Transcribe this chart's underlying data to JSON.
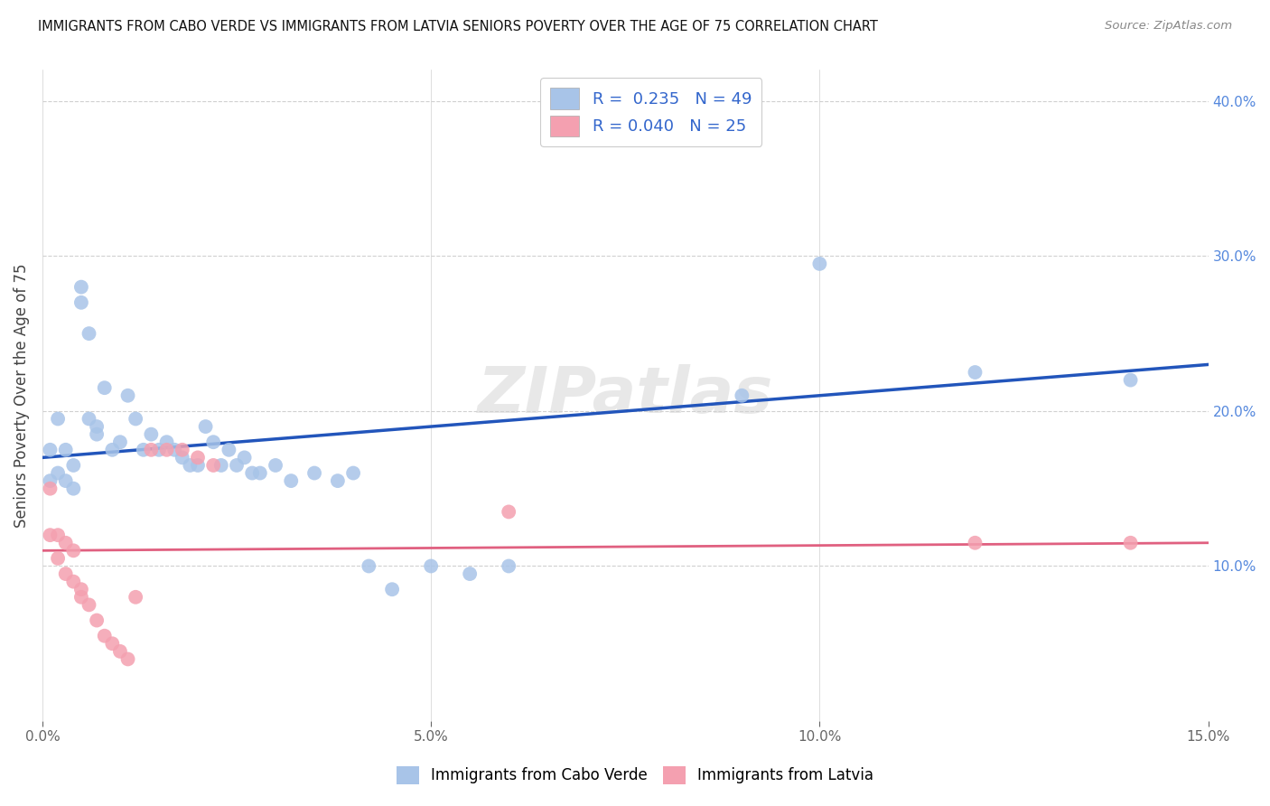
{
  "title": "IMMIGRANTS FROM CABO VERDE VS IMMIGRANTS FROM LATVIA SENIORS POVERTY OVER THE AGE OF 75 CORRELATION CHART",
  "source": "Source: ZipAtlas.com",
  "ylabel": "Seniors Poverty Over the Age of 75",
  "xlim": [
    0,
    0.15
  ],
  "ylim": [
    0,
    0.42
  ],
  "xticks": [
    0.0,
    0.05,
    0.1,
    0.15
  ],
  "xticklabels": [
    "0.0%",
    "5.0%",
    "10.0%",
    "15.0%"
  ],
  "yticks_right": [
    0.1,
    0.2,
    0.3,
    0.4
  ],
  "ytick_right_labels": [
    "10.0%",
    "20.0%",
    "30.0%",
    "40.0%"
  ],
  "cabo_verde_color": "#a8c4e8",
  "latvia_color": "#f4a0b0",
  "cabo_verde_line_color": "#2255bb",
  "latvia_line_color": "#e06080",
  "legend_R_cabo": "0.235",
  "legend_N_cabo": "49",
  "legend_R_latvia": "0.040",
  "legend_N_latvia": "25",
  "cabo_verde_label": "Immigrants from Cabo Verde",
  "latvia_label": "Immigrants from Latvia",
  "watermark": "ZIPatlas",
  "background_color": "#ffffff",
  "grid_color": "#d0d0d0",
  "cabo_verde_x": [
    0.001,
    0.001,
    0.002,
    0.002,
    0.003,
    0.003,
    0.004,
    0.004,
    0.005,
    0.005,
    0.006,
    0.006,
    0.007,
    0.007,
    0.008,
    0.009,
    0.01,
    0.011,
    0.012,
    0.013,
    0.014,
    0.015,
    0.016,
    0.017,
    0.018,
    0.019,
    0.02,
    0.021,
    0.022,
    0.023,
    0.024,
    0.025,
    0.026,
    0.027,
    0.028,
    0.03,
    0.032,
    0.035,
    0.038,
    0.04,
    0.042,
    0.045,
    0.05,
    0.055,
    0.06,
    0.09,
    0.1,
    0.12,
    0.14
  ],
  "cabo_verde_y": [
    0.175,
    0.155,
    0.195,
    0.16,
    0.175,
    0.155,
    0.165,
    0.15,
    0.28,
    0.27,
    0.25,
    0.195,
    0.19,
    0.185,
    0.215,
    0.175,
    0.18,
    0.21,
    0.195,
    0.175,
    0.185,
    0.175,
    0.18,
    0.175,
    0.17,
    0.165,
    0.165,
    0.19,
    0.18,
    0.165,
    0.175,
    0.165,
    0.17,
    0.16,
    0.16,
    0.165,
    0.155,
    0.16,
    0.155,
    0.16,
    0.1,
    0.085,
    0.1,
    0.095,
    0.1,
    0.21,
    0.295,
    0.225,
    0.22
  ],
  "latvia_x": [
    0.001,
    0.001,
    0.002,
    0.002,
    0.003,
    0.003,
    0.004,
    0.004,
    0.005,
    0.005,
    0.006,
    0.007,
    0.008,
    0.009,
    0.01,
    0.011,
    0.012,
    0.014,
    0.016,
    0.018,
    0.02,
    0.022,
    0.06,
    0.12,
    0.14
  ],
  "latvia_y": [
    0.15,
    0.12,
    0.12,
    0.105,
    0.115,
    0.095,
    0.11,
    0.09,
    0.085,
    0.08,
    0.075,
    0.065,
    0.055,
    0.05,
    0.045,
    0.04,
    0.08,
    0.175,
    0.175,
    0.175,
    0.17,
    0.165,
    0.135,
    0.115,
    0.115
  ]
}
